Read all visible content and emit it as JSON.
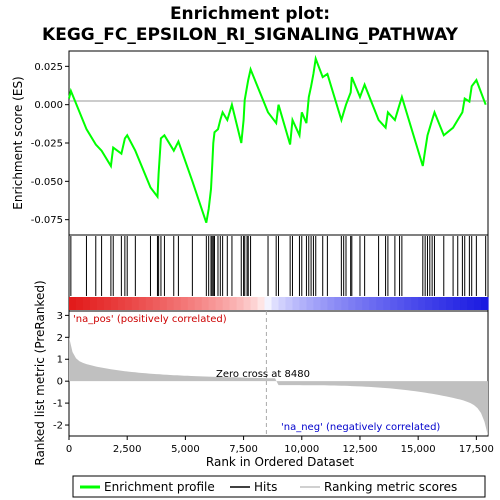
{
  "chart_data": {
    "type": "line",
    "title": "Enrichment plot:\nKEGG_FC_EPSILON_RI_SIGNALING_PATHWAY",
    "xlabel": "Rank in Ordered Dataset",
    "ylabel_top": "Enrichment score (ES)",
    "ylabel_bottom": "Ranked list metric (PreRanked)",
    "xlim": [
      0,
      18000
    ],
    "x_ticks": [
      0,
      2500,
      5000,
      7500,
      10000,
      12500,
      15000,
      17500
    ],
    "x_tick_labels": [
      "0",
      "2,500",
      "5,000",
      "7,500",
      "10,000",
      "12,500",
      "15,000",
      "17,500"
    ],
    "es_ylim": [
      -0.085,
      0.035
    ],
    "es_ticks": [
      0.025,
      0.0,
      -0.025,
      -0.05,
      -0.075
    ],
    "es_tick_labels": [
      "0.025",
      "0.000",
      "-0.025",
      "-0.050",
      "-0.075"
    ],
    "metric_ylim": [
      -2.5,
      3.2
    ],
    "metric_ticks": [
      3,
      2,
      1,
      0,
      -1,
      -2
    ],
    "metric_tick_labels": [
      "3",
      "2",
      "1",
      "0",
      "-1",
      "-2"
    ],
    "legend": [
      {
        "name": "Enrichment profile",
        "color": "#00ff00"
      },
      {
        "name": "Hits",
        "color": "#000000"
      },
      {
        "name": "Ranking metric scores",
        "color": "#c0c0c0"
      }
    ],
    "annotations": {
      "pos_label": "'na_pos' (positively correlated)",
      "neg_label": "'na_neg' (negatively correlated)",
      "zero_cross": "Zero cross at 8480"
    },
    "zero_cross_rank": 8480,
    "colors": {
      "profile": "#00ff00",
      "pos": "#cc0000",
      "neg": "#0000cc",
      "metric_fill": "#c0c0c0"
    },
    "hits": [
      80,
      750,
      1150,
      1400,
      1800,
      1900,
      2250,
      2400,
      2500,
      2850,
      3500,
      3800,
      3850,
      3950,
      4100,
      4500,
      4700,
      5300,
      5900,
      6000,
      6100,
      6150,
      6200,
      6250,
      6400,
      6500,
      6600,
      6800,
      7000,
      7400,
      7500,
      7550,
      7650,
      7700,
      7800,
      8550,
      8900,
      9000,
      9500,
      9600,
      9900,
      10000,
      10200,
      10300,
      10400,
      10500,
      10600,
      10900,
      11100,
      11700,
      11800,
      11900,
      12100,
      12150,
      12500,
      12700,
      13300,
      13600,
      13700,
      14000,
      14200,
      14300,
      15200,
      15300,
      15400,
      15500,
      15600,
      15700,
      16100,
      16500,
      16700,
      16900,
      17000,
      17200,
      17300,
      17500,
      17900
    ],
    "es_profile": {
      "x": [
        0,
        80,
        750,
        1150,
        1400,
        1800,
        1900,
        2250,
        2400,
        2500,
        2850,
        3500,
        3800,
        3850,
        3950,
        4100,
        4500,
        4700,
        5300,
        5900,
        6000,
        6100,
        6150,
        6200,
        6250,
        6400,
        6500,
        6600,
        6800,
        7000,
        7400,
        7500,
        7550,
        7650,
        7700,
        7800,
        8550,
        8900,
        9000,
        9500,
        9600,
        9900,
        10000,
        10200,
        10300,
        10400,
        10500,
        10600,
        10900,
        11100,
        11700,
        11800,
        11900,
        12100,
        12150,
        12500,
        12700,
        13300,
        13600,
        13700,
        14000,
        14200,
        14300,
        15200,
        15300,
        15400,
        15500,
        15600,
        15700,
        16100,
        16500,
        16700,
        16900,
        17000,
        17200,
        17300,
        17500,
        17900
      ],
      "y": [
        0.004,
        0.009,
        -0.016,
        -0.026,
        -0.03,
        -0.04,
        -0.028,
        -0.032,
        -0.022,
        -0.02,
        -0.03,
        -0.054,
        -0.06,
        -0.045,
        -0.022,
        -0.02,
        -0.03,
        -0.024,
        -0.05,
        -0.077,
        -0.068,
        -0.055,
        -0.04,
        -0.025,
        -0.018,
        -0.016,
        -0.01,
        -0.005,
        -0.01,
        0.0,
        -0.025,
        -0.01,
        0.003,
        0.012,
        0.016,
        0.023,
        -0.005,
        -0.012,
        0.0,
        -0.026,
        -0.01,
        -0.02,
        -0.005,
        -0.012,
        0.005,
        0.012,
        0.02,
        0.03,
        0.018,
        0.02,
        -0.01,
        -0.005,
        0.0,
        0.008,
        0.018,
        0.005,
        0.013,
        -0.01,
        -0.015,
        -0.005,
        -0.01,
        0.0,
        0.005,
        -0.04,
        -0.03,
        -0.02,
        -0.015,
        -0.01,
        -0.005,
        -0.02,
        -0.015,
        -0.01,
        -0.005,
        0.004,
        0.002,
        0.012,
        0.016,
        0.0
      ]
    }
  }
}
